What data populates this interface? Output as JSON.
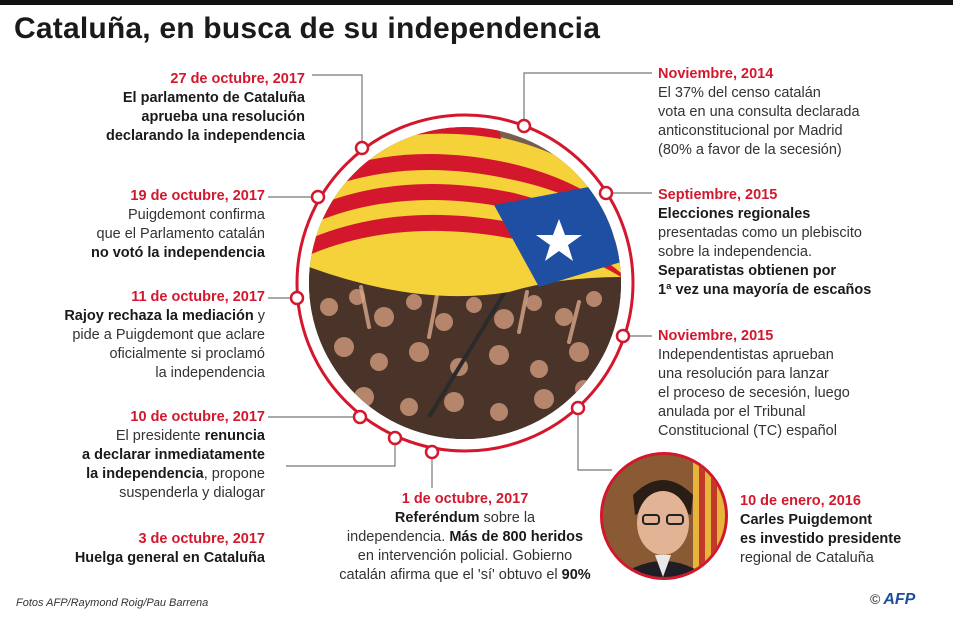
{
  "title": "Cataluña, en busca de su independencia",
  "events": {
    "oct27": {
      "date": "27 de octubre, 2017",
      "l1": "El parlamento de Cataluña",
      "l2": "aprueba una resolución",
      "l3": "declarando la independencia"
    },
    "oct19": {
      "date": "19 de octubre, 2017",
      "l1": "Puigdemont confirma",
      "l2": "que el Parlamento catalán",
      "l3": "no votó la independencia"
    },
    "oct11": {
      "date": "11 de octubre, 2017",
      "l1a": "Rajoy rechaza la mediación",
      "l1b": " y",
      "l2a": "pide a Puigdemont ",
      "l2b": "que aclare",
      "l3": "oficialmente si proclamó",
      "l4": "la independencia"
    },
    "oct10": {
      "date": "10 de octubre, 2017",
      "l1a": "El presidente ",
      "l1b": "renuncia",
      "l2": "a declarar inmediatamente",
      "l3a": "la independencia",
      "l3b": ", propone",
      "l4": "suspenderla y dialogar"
    },
    "oct3": {
      "date": "3 de octubre, 2017",
      "l1": "Huelga general en Cataluña"
    },
    "oct1": {
      "date": "1 de octubre, 2017",
      "l1a": "Referéndum",
      "l1b": " sobre la",
      "l2a": "independencia. ",
      "l2b": "Más de 800 heridos",
      "l3": "en intervención policial. Gobierno",
      "l4a": "catalán afirma que el 'sí' obtuvo el ",
      "l4b": "90%"
    },
    "nov2014": {
      "date": "Noviembre, 2014",
      "l1": "El 37% del censo catalán",
      "l2": "vota en una consulta declarada",
      "l3": "anticonstitucional por Madrid",
      "l4": "(80% a favor de la secesión)"
    },
    "sep2015": {
      "date": "Septiembre, 2015",
      "l1": "Elecciones regionales",
      "l2": "presentadas como un plebiscito",
      "l3": "sobre la independencia.",
      "l4": "Separatistas obtienen por",
      "l5": "1ª vez una mayoría de escaños"
    },
    "nov2015": {
      "date": "Noviembre, 2015",
      "l1": "Independentistas aprueban",
      "l2": "una resolución para lanzar",
      "l3": "el proceso de secesión, luego",
      "l4": "anulada por el Tribunal",
      "l5": "Constitucional (TC) español"
    },
    "jan2016": {
      "date": "10 de enero, 2016",
      "l1": "Carles Puigdemont",
      "l2": "es investido presidente",
      "l3": "regional de Cataluña"
    }
  },
  "credit": "Fotos AFP/Raymond Roig/Pau Barrena",
  "logo": {
    "copyright": "©",
    "text": "AFP"
  },
  "colors": {
    "accent": "#d3182e",
    "flag_yellow": "#f6d23a",
    "flag_blue": "#1f4fa3"
  }
}
